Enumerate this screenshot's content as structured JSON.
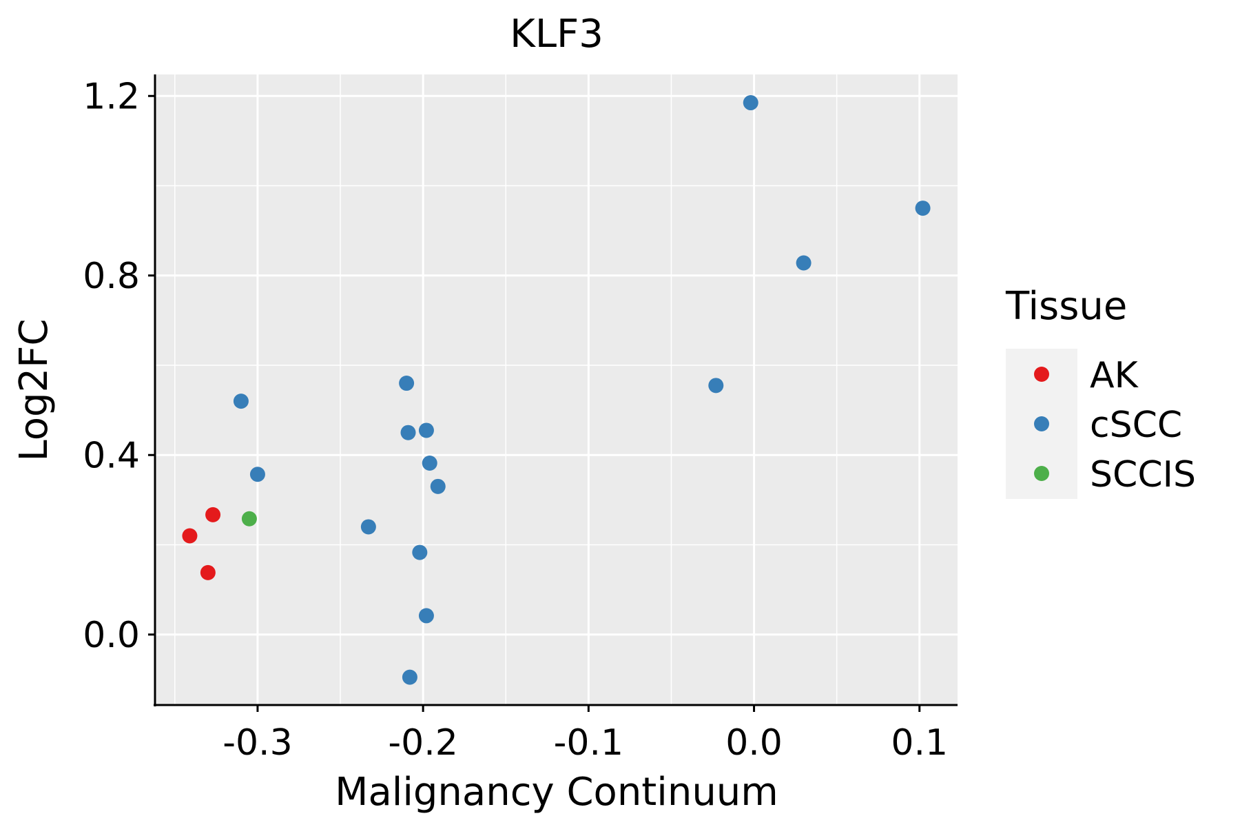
{
  "chart_data": {
    "type": "scatter",
    "title": "KLF3",
    "xlabel": "Malignancy Continuum",
    "ylabel": "Log2FC",
    "xlim": [
      -0.362,
      0.123
    ],
    "ylim": [
      -0.157,
      1.248
    ],
    "x_ticks": [
      -0.3,
      -0.2,
      -0.1,
      0.0,
      0.1
    ],
    "x_tick_labels": [
      "-0.3",
      "-0.2",
      "-0.1",
      "0.0",
      "0.1"
    ],
    "y_ticks": [
      0.0,
      0.4,
      0.8,
      1.2
    ],
    "y_tick_labels": [
      "0.0",
      "0.4",
      "0.8",
      "1.2"
    ],
    "grid": true,
    "legend": {
      "title": "Tissue",
      "position": "right",
      "entries": [
        {
          "label": "AK",
          "color": "#E41A1C"
        },
        {
          "label": "cSCC",
          "color": "#377EB8"
        },
        {
          "label": "SCCIS",
          "color": "#4DAF4A"
        }
      ]
    },
    "series": [
      {
        "name": "AK",
        "color": "#E41A1C",
        "points": [
          [
            -0.341,
            0.22
          ],
          [
            -0.327,
            0.267
          ],
          [
            -0.33,
            0.138
          ]
        ]
      },
      {
        "name": "cSCC",
        "color": "#377EB8",
        "points": [
          [
            -0.002,
            1.185
          ],
          [
            0.102,
            0.95
          ],
          [
            0.03,
            0.828
          ],
          [
            -0.023,
            0.555
          ],
          [
            -0.31,
            0.52
          ],
          [
            -0.21,
            0.56
          ],
          [
            -0.209,
            0.45
          ],
          [
            -0.198,
            0.455
          ],
          [
            -0.196,
            0.382
          ],
          [
            -0.191,
            0.33
          ],
          [
            -0.3,
            0.357
          ],
          [
            -0.233,
            0.24
          ],
          [
            -0.202,
            0.183
          ],
          [
            -0.198,
            0.042
          ],
          [
            -0.208,
            -0.095
          ]
        ]
      },
      {
        "name": "SCCIS",
        "color": "#4DAF4A",
        "points": [
          [
            -0.305,
            0.258
          ]
        ]
      }
    ]
  }
}
